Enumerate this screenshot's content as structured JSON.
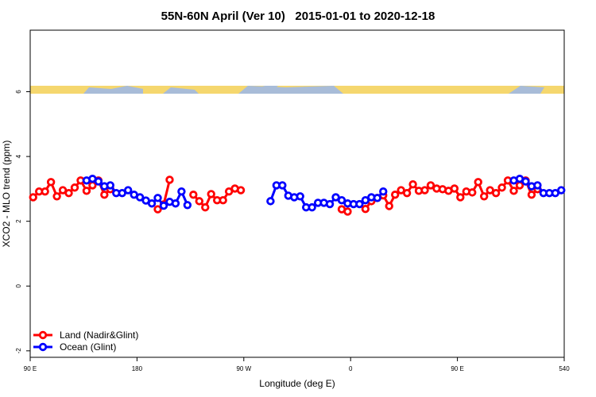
{
  "chart_data": {
    "type": "line",
    "title": "55N-60N April (Ver 10)   2015-01-01 to 2020-12-18",
    "x_label": "Longitude (deg E)",
    "y_label": "XCO2 - MLO trend (ppm)",
    "xlim": [
      90,
      540
    ],
    "ylim": [
      -2.2,
      7.9
    ],
    "xticks": [
      {
        "value": 90,
        "label": "90 E"
      },
      180,
      {
        "value": 270,
        "label": "90 W"
      },
      {
        "value": 360,
        "label": "0"
      },
      {
        "value": 450,
        "label": "90 E"
      },
      540
    ],
    "yticks": [
      -2,
      0,
      2,
      4,
      6
    ],
    "legend": "bottomleft",
    "series": [
      {
        "name": "Land (Nadir&Glint)",
        "color": "#ff0000",
        "x": [
          92.5,
          97.5,
          102.5,
          107.5,
          112.5,
          117.5,
          122.5,
          127.5,
          132.5,
          137.5,
          142.5,
          147.5,
          152.5,
          157.5,
          162.5,
          197.5,
          202.5,
          207.5,
          212.5,
          227.5,
          232.5,
          237.5,
          242.5,
          247.5,
          252.5,
          257.5,
          262.5,
          267.5,
          272.5,
          352.5,
          357.5,
          362.5,
          372.5,
          377.5,
          382.5,
          387.5,
          392.5,
          397.5,
          402.5,
          407.5,
          412.5,
          417.5,
          422.5,
          427.5,
          432.5,
          437.5,
          442.5,
          447.5,
          452.5,
          457.5,
          462.5,
          467.5,
          472.5,
          477.5,
          482.5,
          487.5,
          492.5,
          497.5,
          502.5,
          507.5,
          512.5,
          517.5
        ],
        "values": [
          2.74,
          2.92,
          2.92,
          3.21,
          2.77,
          2.96,
          2.87,
          3.04,
          3.26,
          2.94,
          3.11,
          3.26,
          2.82,
          2.99,
          null,
          2.37,
          2.52,
          3.28,
          null,
          2.82,
          2.62,
          2.43,
          2.84,
          2.65,
          2.65,
          2.92,
          3.01,
          2.96,
          null,
          2.37,
          2.3,
          null,
          2.38,
          2.62,
          2.72,
          2.8,
          2.47,
          2.82,
          2.96,
          2.87,
          3.14,
          2.94,
          2.96,
          3.11,
          3.01,
          2.99,
          2.94,
          3.01,
          2.74,
          2.92,
          2.89,
          3.21,
          2.77,
          2.96,
          2.87,
          3.04,
          3.26,
          2.94,
          3.11,
          3.26,
          2.82,
          2.99
        ]
      },
      {
        "name": "Ocean (Glint)",
        "color": "#0000ff",
        "x": [
          137.5,
          142.5,
          147.5,
          152.5,
          157.5,
          162.5,
          167.5,
          172.5,
          177.5,
          182.5,
          187.5,
          192.5,
          197.5,
          202.5,
          207.5,
          212.5,
          217.5,
          222.5,
          227.5,
          292.5,
          297.5,
          302.5,
          307.5,
          312.5,
          317.5,
          322.5,
          327.5,
          332.5,
          337.5,
          342.5,
          347.5,
          352.5,
          357.5,
          362.5,
          367.5,
          372.5,
          377.5,
          382.5,
          387.5,
          392.5,
          497.5,
          502.5,
          507.5,
          512.5,
          517.5,
          522.5,
          527.5,
          532.5,
          537.5
        ],
        "values": [
          3.26,
          3.31,
          3.23,
          3.08,
          3.11,
          2.87,
          2.87,
          2.96,
          2.82,
          2.74,
          2.64,
          2.55,
          2.72,
          2.48,
          2.6,
          2.55,
          2.92,
          2.5,
          null,
          2.62,
          3.11,
          3.11,
          2.79,
          2.74,
          2.77,
          2.43,
          2.43,
          2.57,
          2.57,
          2.53,
          2.74,
          2.65,
          2.55,
          2.53,
          2.53,
          2.65,
          2.74,
          2.72,
          2.92,
          null,
          3.26,
          3.31,
          3.23,
          3.08,
          3.11,
          2.87,
          2.87,
          2.87,
          2.96
        ]
      }
    ]
  }
}
